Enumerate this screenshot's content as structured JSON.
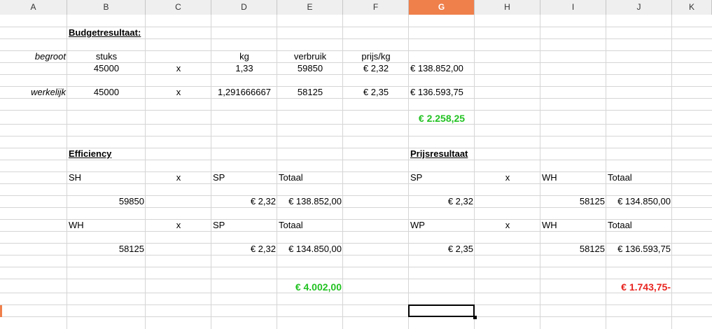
{
  "columns": [
    "A",
    "B",
    "C",
    "D",
    "E",
    "F",
    "G",
    "H",
    "I",
    "J",
    "K"
  ],
  "active_column": "G",
  "cells": {
    "title": "Budgetresultaat:",
    "begroot_label": "begroot",
    "h_stuks": "stuks",
    "h_kg": "kg",
    "h_verbruik": "verbruik",
    "h_prijskg": "prijs/kg",
    "b_stuks": "45000",
    "b_x": "x",
    "b_kg": "1,33",
    "b_verbruik": "59850",
    "b_prijs": "€ 2,32",
    "b_totaal": "€ 138.852,00",
    "werkelijk_label": "werkelijk",
    "w_stuks": "45000",
    "w_x": "x",
    "w_kg": "1,291666667",
    "w_verbruik": "58125",
    "w_prijs": "€ 2,35",
    "w_totaal": "€ 136.593,75",
    "budget_result": "€ 2.258,25",
    "efficiency_title": "Efficiency",
    "prijs_title": "Prijsresultaat",
    "e1_a": "SH",
    "e1_x": "x",
    "e1_b": "SP",
    "e1_t": "Totaal",
    "p1_a": "SP",
    "p1_x": "x",
    "p1_b": "WH",
    "p1_t": "Totaal",
    "e1_v1": "59850",
    "e1_v2": "€ 2,32",
    "e1_v3": "€ 138.852,00",
    "p1_v1": "€ 2,32",
    "p1_v2": "58125",
    "p1_v3": "€ 134.850,00",
    "e2_a": "WH",
    "e2_x": "x",
    "e2_b": "SP",
    "e2_t": "Totaal",
    "p2_a": "WP",
    "p2_x": "x",
    "p2_b": "WH",
    "p2_t": "Totaal",
    "e2_v1": "58125",
    "e2_v2": "€ 2,32",
    "e2_v3": "€ 134.850,00",
    "p2_v1": "€ 2,35",
    "p2_v2": "58125",
    "p2_v3": "€ 136.593,75",
    "efficiency_result": "€ 4.002,00",
    "prijs_result": "€ 1.743,75-"
  },
  "colors": {
    "positive": "#22c222",
    "negative": "#e8241f",
    "accent": "#ef7f4b"
  }
}
